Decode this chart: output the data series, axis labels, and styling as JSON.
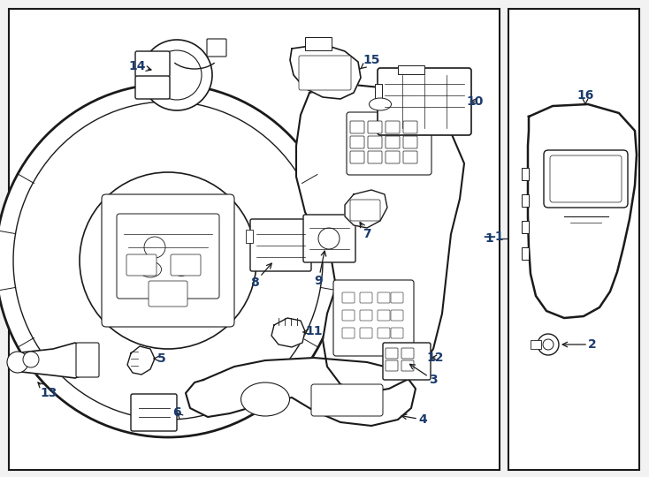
{
  "background_color": "#f2f2f2",
  "line_color": "#1a1a1a",
  "label_color": "#1a3a6b",
  "font_size_labels": 10,
  "lw_main": 1.4,
  "lw_thin": 0.8
}
